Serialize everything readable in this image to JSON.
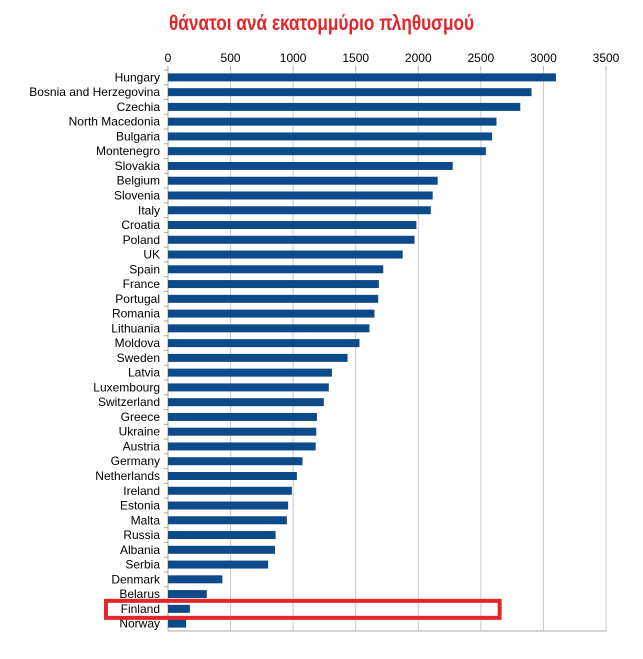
{
  "chart_data": {
    "type": "bar",
    "orientation": "horizontal",
    "title": "θάνατοι ανά εκατομμύριο πληθυσμού",
    "xlabel": "",
    "ylabel": "",
    "xlim": [
      0,
      3500
    ],
    "x_ticks": [
      0,
      500,
      1000,
      1500,
      2000,
      2500,
      3000,
      3500
    ],
    "grid": true,
    "bar_color": "#0d4a8a",
    "highlight_color": "#e3262a",
    "highlighted_category": "Finland",
    "categories": [
      "Hungary",
      "Bosnia and Herzegovina",
      "Czechia",
      "North Macedonia",
      "Bulgaria",
      "Montenegro",
      "Slovakia",
      "Belgium",
      "Slovenia",
      "Italy",
      "Croatia",
      "Poland",
      "UK",
      "Spain",
      "France",
      "Portugal",
      "Romania",
      "Lithuania",
      "Moldova",
      "Sweden",
      "Latvia",
      "Luxembourg",
      "Switzerland",
      "Greece",
      "Ukraine",
      "Austria",
      "Germany",
      "Netherlands",
      "Ireland",
      "Estonia",
      "Malta",
      "Russia",
      "Albania",
      "Serbia",
      "Denmark",
      "Belarus",
      "Finland",
      "Norway"
    ],
    "values": [
      3100,
      2905,
      2815,
      2625,
      2590,
      2540,
      2275,
      2155,
      2115,
      2100,
      1985,
      1970,
      1875,
      1720,
      1685,
      1680,
      1650,
      1610,
      1530,
      1435,
      1310,
      1285,
      1245,
      1190,
      1185,
      1180,
      1075,
      1030,
      990,
      960,
      950,
      860,
      855,
      800,
      435,
      310,
      175,
      145
    ]
  }
}
